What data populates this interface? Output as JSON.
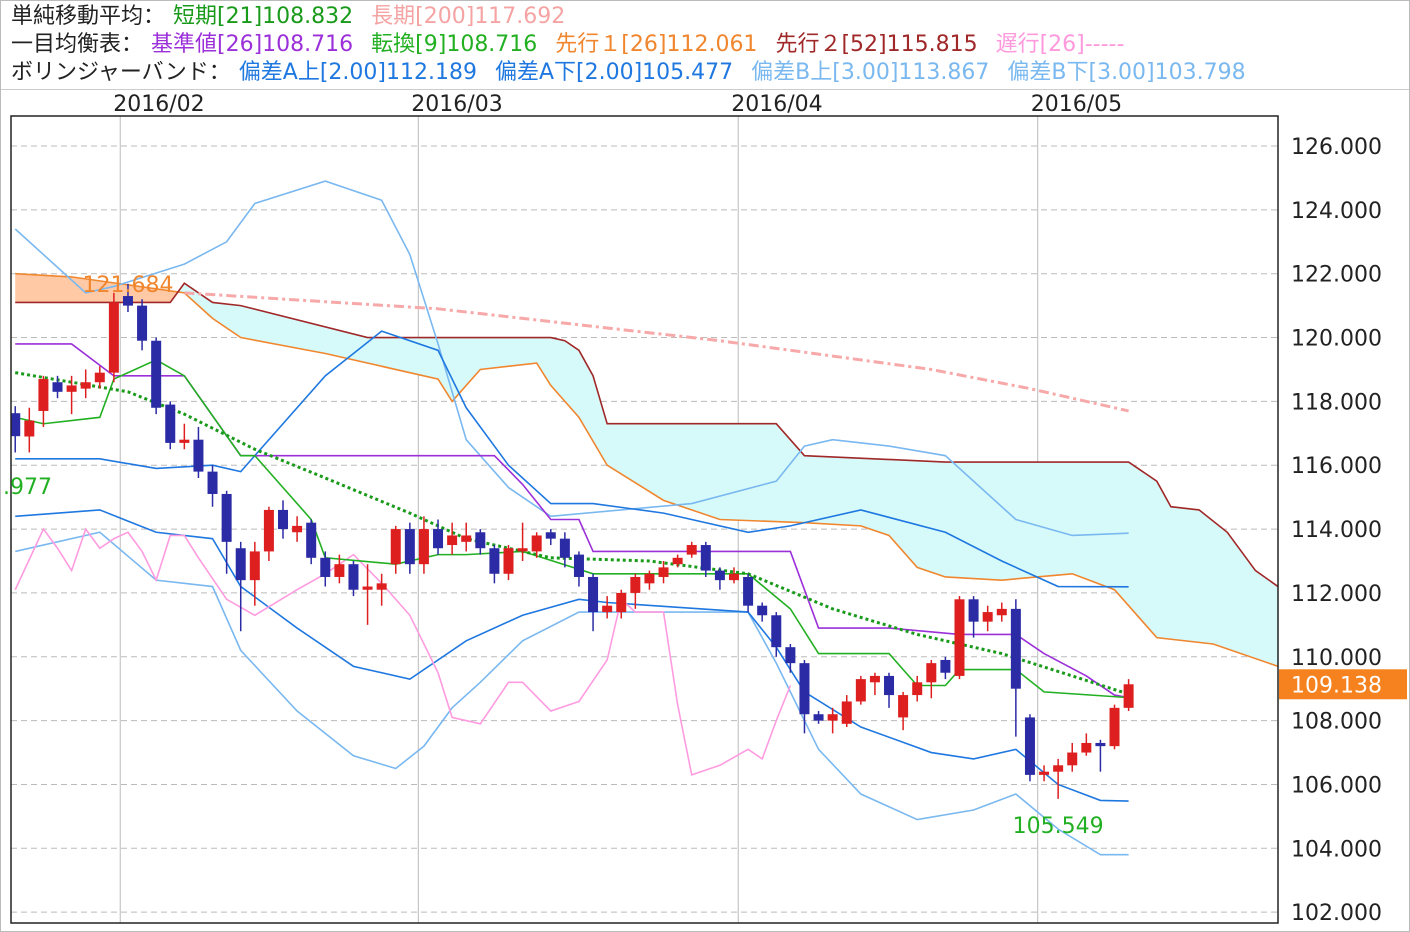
{
  "header": {
    "lines": [
      [
        {
          "text": "単純移動平均：",
          "color": "#222222"
        },
        {
          "text": "短期[21]108.832",
          "color": "#1a9a1a"
        },
        {
          "text": "長期[200]117.692",
          "color": "#f5a3a3"
        }
      ],
      [
        {
          "text": "一目均衡表：",
          "color": "#222222"
        },
        {
          "text": "基準値[26]108.716",
          "color": "#9b30d9"
        },
        {
          "text": "転換[9]108.716",
          "color": "#22b022"
        },
        {
          "text": "先行１[26]112.061",
          "color": "#f0862e"
        },
        {
          "text": "先行２[52]115.815",
          "color": "#a02828"
        },
        {
          "text": "遅行[26]-----",
          "color": "#ff99dd"
        }
      ],
      [
        {
          "text": "ボリンジャーバンド：",
          "color": "#222222"
        },
        {
          "text": "偏差A上[2.00]112.189",
          "color": "#1f78e0"
        },
        {
          "text": "偏差A下[2.00]105.477",
          "color": "#1f78e0"
        },
        {
          "text": "偏差B上[3.00]113.867",
          "color": "#7ab8f0"
        },
        {
          "text": "偏差B下[3.00]103.798",
          "color": "#7ab8f0"
        }
      ]
    ]
  },
  "chart_data": {
    "type": "candlestick",
    "grid": true,
    "xlim": [
      -0.3,
      89.6
    ],
    "xticks": [
      {
        "value": 7.45,
        "label": "2016/02"
      },
      {
        "value": 28.6,
        "label": "2016/03"
      },
      {
        "value": 51.3,
        "label": "2016/04"
      },
      {
        "value": 72.55,
        "label": "2016/05"
      }
    ],
    "ylim": [
      101.66,
      126.94
    ],
    "yticks": [
      {
        "value": 102,
        "label": "102.000"
      },
      {
        "value": 104,
        "label": "104.000"
      },
      {
        "value": 106,
        "label": "106.000"
      },
      {
        "value": 108,
        "label": "108.000"
      },
      {
        "value": 110,
        "label": "110.000"
      },
      {
        "value": 112,
        "label": "112.000"
      },
      {
        "value": 114,
        "label": "114.000"
      },
      {
        "value": 116,
        "label": "116.000"
      },
      {
        "value": 118,
        "label": "118.000"
      },
      {
        "value": 120,
        "label": "120.000"
      },
      {
        "value": 122,
        "label": "122.000"
      },
      {
        "value": 124,
        "label": "124.000"
      },
      {
        "value": 126,
        "label": "126.000"
      }
    ],
    "candles": {
      "up_color": "#dd1f1f",
      "down_color": "#2b2ba5",
      "open": [
        117.63,
        116.9,
        117.7,
        118.6,
        118.3,
        118.4,
        118.6,
        118.9,
        121.3,
        121.0,
        119.9,
        117.9,
        116.7,
        116.8,
        115.8,
        115.1,
        113.4,
        112.4,
        113.3,
        114.6,
        113.9,
        114.2,
        113.1,
        112.5,
        112.9,
        112.1,
        112.1,
        112.9,
        114.0,
        112.9,
        114.0,
        113.5,
        113.6,
        113.9,
        113.4,
        112.6,
        113.3,
        113.3,
        113.9,
        113.7,
        113.2,
        112.5,
        111.4,
        111.4,
        112.0,
        112.3,
        112.5,
        112.9,
        113.2,
        113.5,
        112.7,
        112.4,
        112.5,
        111.6,
        111.3,
        110.3,
        109.8,
        108.2,
        108.0,
        107.9,
        108.6,
        109.2,
        109.4,
        108.1,
        108.8,
        109.2,
        109.9,
        109.4,
        111.8,
        111.1,
        111.3,
        111.5,
        108.1,
        106.3,
        106.4,
        106.6,
        107.0,
        107.3,
        107.2,
        108.4
      ],
      "high": [
        117.85,
        117.8,
        118.8,
        118.8,
        118.8,
        119.0,
        119.1,
        121.4,
        121.684,
        121.2,
        120.0,
        118.0,
        117.3,
        117.2,
        116.0,
        115.2,
        113.6,
        113.6,
        114.7,
        114.9,
        114.4,
        114.3,
        113.3,
        113.2,
        113.0,
        112.9,
        112.6,
        114.1,
        114.2,
        114.4,
        114.3,
        114.2,
        114.2,
        114.0,
        113.5,
        113.5,
        114.2,
        113.9,
        114.0,
        113.9,
        113.3,
        112.6,
        111.9,
        112.1,
        112.6,
        112.7,
        113.0,
        113.2,
        113.6,
        113.6,
        112.8,
        112.8,
        112.6,
        111.7,
        111.4,
        110.4,
        109.9,
        108.3,
        108.4,
        108.8,
        109.4,
        109.5,
        109.5,
        108.9,
        109.4,
        109.9,
        110.0,
        111.9,
        111.9,
        111.6,
        111.7,
        111.8,
        108.2,
        106.6,
        106.8,
        107.3,
        107.6,
        107.4,
        108.5,
        109.3
      ],
      "low": [
        116.4,
        116.4,
        117.2,
        118.1,
        117.6,
        118.1,
        118.4,
        118.6,
        120.8,
        119.6,
        117.6,
        116.5,
        116.5,
        115.6,
        114.7,
        112.6,
        110.8,
        111.6,
        113.0,
        113.7,
        113.6,
        112.9,
        112.2,
        112.3,
        111.9,
        111.0,
        111.6,
        112.6,
        112.6,
        112.6,
        113.2,
        113.2,
        113.3,
        113.2,
        112.3,
        112.4,
        113.0,
        113.1,
        113.5,
        112.8,
        112.2,
        110.8,
        111.2,
        111.2,
        111.5,
        112.1,
        112.3,
        112.8,
        113.1,
        112.5,
        112.1,
        112.3,
        111.4,
        111.1,
        110.0,
        109.5,
        107.6,
        107.9,
        107.6,
        107.8,
        108.5,
        108.8,
        108.4,
        107.7,
        108.6,
        108.7,
        109.3,
        109.3,
        110.6,
        110.8,
        111.1,
        107.5,
        106.1,
        106.1,
        105.549,
        106.4,
        106.9,
        106.4,
        107.1,
        108.3
      ],
      "close": [
        116.91,
        117.4,
        118.7,
        118.3,
        118.5,
        118.6,
        118.9,
        121.1,
        121.0,
        119.9,
        117.8,
        116.7,
        116.8,
        115.8,
        115.1,
        113.6,
        112.4,
        113.3,
        114.6,
        114.0,
        114.1,
        113.1,
        112.5,
        112.9,
        112.1,
        112.2,
        112.3,
        114.0,
        112.9,
        114.0,
        113.4,
        113.8,
        113.8,
        113.4,
        112.6,
        113.4,
        113.4,
        113.8,
        113.7,
        113.1,
        112.5,
        111.4,
        111.6,
        112.0,
        112.5,
        112.6,
        112.8,
        113.1,
        113.5,
        112.7,
        112.4,
        112.6,
        111.6,
        111.3,
        110.3,
        109.8,
        108.2,
        108.0,
        108.2,
        108.6,
        109.3,
        109.4,
        108.8,
        108.8,
        109.2,
        109.8,
        109.5,
        111.8,
        111.1,
        111.4,
        111.5,
        109.0,
        106.3,
        106.4,
        106.6,
        107.0,
        107.3,
        107.2,
        108.4,
        109.138
      ]
    },
    "series": [
      {
        "color": "#d6fafa",
        "style": "fill",
        "cloud_colors": [
          "#ffc9a6",
          "#d6fafa"
        ],
        "line_color": "#f0862e",
        "x": [
          0,
          4,
          12,
          14,
          16,
          22,
          30,
          31,
          33,
          37,
          38,
          40,
          42,
          46,
          50,
          56,
          60,
          62,
          64,
          66,
          70,
          75,
          78,
          81,
          85,
          89.6
        ],
        "values": [
          122.0,
          121.9,
          121.4,
          120.6,
          120.0,
          119.5,
          118.7,
          118.0,
          119.0,
          119.2,
          118.5,
          117.5,
          116.0,
          114.9,
          114.3,
          114.2,
          114.1,
          113.8,
          112.8,
          112.5,
          112.4,
          112.6,
          112.1,
          110.6,
          110.4,
          109.7
        ]
      },
      {
        "color": "#a02828",
        "style": "solid",
        "x": [
          0,
          11,
          12,
          14,
          16,
          25,
          38,
          39,
          40,
          41,
          42,
          54,
          56,
          66,
          79,
          81,
          82,
          84,
          86,
          88,
          89.6
        ],
        "values": [
          121.1,
          121.1,
          121.7,
          121.1,
          121.0,
          120.0,
          120.0,
          119.9,
          119.6,
          118.8,
          117.3,
          117.3,
          116.3,
          116.1,
          116.1,
          115.5,
          114.7,
          114.6,
          113.9,
          112.7,
          112.2
        ]
      },
      {
        "color": "#7ab8f0",
        "style": "solid",
        "x": [
          0,
          5,
          7,
          12,
          15,
          17,
          22,
          26,
          28,
          30,
          32,
          35,
          38,
          48,
          54,
          56,
          58,
          62,
          66,
          71,
          75,
          79
        ],
        "values": [
          123.4,
          121.4,
          121.6,
          122.3,
          123.0,
          124.2,
          124.9,
          124.3,
          122.6,
          119.8,
          116.8,
          115.3,
          114.4,
          114.8,
          115.5,
          116.6,
          116.8,
          116.6,
          116.3,
          114.3,
          113.8,
          113.87
        ]
      },
      {
        "color": "#7ab8f0",
        "style": "solid",
        "x": [
          0,
          6,
          10,
          14,
          16,
          20,
          24,
          27,
          29,
          31,
          33,
          36,
          40,
          52,
          54,
          57,
          60,
          64,
          68,
          71,
          74,
          77,
          79
        ],
        "values": [
          113.3,
          113.9,
          112.4,
          112.2,
          110.2,
          108.3,
          106.9,
          106.5,
          107.2,
          108.4,
          109.2,
          110.5,
          111.4,
          111.4,
          109.8,
          107.1,
          105.7,
          104.9,
          105.2,
          105.7,
          104.6,
          103.8,
          103.8
        ]
      },
      {
        "color": "#1f78e0",
        "style": "solid",
        "x": [
          0,
          6,
          10,
          14,
          16,
          22,
          26,
          30,
          32,
          35,
          38,
          41,
          46,
          52,
          55,
          60,
          66,
          70,
          74,
          79
        ],
        "values": [
          116.2,
          116.2,
          115.9,
          116.0,
          115.8,
          118.8,
          120.2,
          119.6,
          117.8,
          116.0,
          114.8,
          114.8,
          114.5,
          113.9,
          114.1,
          114.6,
          113.9,
          113.0,
          112.2,
          112.19
        ]
      },
      {
        "color": "#1f78e0",
        "style": "solid",
        "x": [
          0,
          6,
          10,
          14,
          16,
          20,
          24,
          28,
          32,
          36,
          40,
          42,
          52,
          54,
          56,
          60,
          65,
          68,
          71,
          74,
          77,
          79
        ],
        "values": [
          114.4,
          114.6,
          113.9,
          113.7,
          112.2,
          110.9,
          109.7,
          109.3,
          110.5,
          111.3,
          111.8,
          111.7,
          111.4,
          110.3,
          108.9,
          107.8,
          107.0,
          106.8,
          107.1,
          106.0,
          105.5,
          105.48
        ]
      },
      {
        "color": "#f7a8a8",
        "style": "dashdot",
        "x": [
          12,
          30,
          50,
          65,
          72,
          79
        ],
        "values": [
          121.4,
          120.9,
          119.9,
          119.0,
          118.4,
          117.7
        ]
      },
      {
        "color": "#ff9be0",
        "style": "solid",
        "x": [
          0,
          2,
          3,
          4,
          5,
          6,
          7,
          8,
          9,
          10,
          11,
          12,
          13,
          15,
          17,
          20,
          22,
          24,
          26,
          28,
          30,
          31,
          33,
          35,
          36,
          38,
          40,
          42,
          43,
          44,
          46,
          47,
          48,
          50,
          52,
          53,
          54,
          55
        ],
        "values": [
          112.1,
          114.0,
          113.4,
          112.7,
          114.0,
          113.4,
          113.7,
          113.9,
          113.3,
          112.4,
          113.8,
          113.8,
          113.1,
          111.8,
          111.3,
          112.1,
          112.6,
          113.2,
          112.3,
          111.3,
          109.5,
          108.1,
          107.9,
          109.2,
          109.2,
          108.3,
          108.6,
          109.9,
          111.8,
          111.4,
          111.4,
          108.5,
          106.3,
          106.6,
          107.1,
          106.8,
          108.0,
          109.1
        ]
      },
      {
        "color": "#9b30d9",
        "style": "solid",
        "x": [
          0,
          4,
          7,
          12,
          16,
          34,
          36,
          38,
          40,
          41,
          55,
          57,
          62,
          67,
          71,
          73,
          76,
          78,
          79
        ],
        "values": [
          119.8,
          119.8,
          118.8,
          118.8,
          116.3,
          116.3,
          115.4,
          114.3,
          114.3,
          113.3,
          113.3,
          110.9,
          110.9,
          110.7,
          110.7,
          110.1,
          109.4,
          108.8,
          108.72
        ]
      },
      {
        "color": "#22b022",
        "style": "solid",
        "x": [
          0,
          2,
          6,
          7,
          10,
          12,
          16,
          17,
          21,
          22,
          27,
          30,
          32,
          36,
          41,
          52,
          55,
          57,
          62,
          64,
          66,
          67,
          71,
          73,
          79
        ],
        "values": [
          117.5,
          117.3,
          117.5,
          118.7,
          119.3,
          118.8,
          116.3,
          116.3,
          114.3,
          113.1,
          112.9,
          113.2,
          113.2,
          113.3,
          112.6,
          112.6,
          111.5,
          110.1,
          110.1,
          109.1,
          109.1,
          109.6,
          109.6,
          108.9,
          108.72
        ]
      },
      {
        "color": "#1a9a1a",
        "style": "dotted",
        "x": [
          0,
          8,
          12,
          17,
          22,
          28,
          32,
          38,
          45,
          52,
          58,
          64,
          70,
          75,
          79
        ],
        "values": [
          118.9,
          118.3,
          117.6,
          116.5,
          115.6,
          114.5,
          113.7,
          113.1,
          113.0,
          112.6,
          111.5,
          110.7,
          110.1,
          109.4,
          108.83
        ]
      }
    ],
    "annotations": [
      {
        "x": 8,
        "value": 121.684,
        "color": "#f0862e"
      },
      {
        "x": 74,
        "value": 105.549,
        "color": "#22b022"
      }
    ],
    "side_note": {
      "text": ".977",
      "color": "#22b022"
    },
    "last_price": 109.138,
    "last_price_color": "#f5821f"
  }
}
